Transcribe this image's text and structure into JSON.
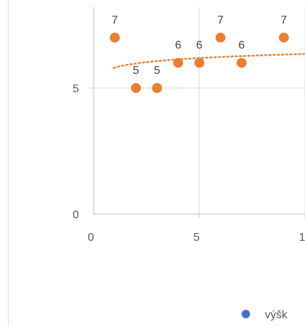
{
  "chart_data": {
    "type": "scatter",
    "title": "",
    "xlabel": "",
    "ylabel": "",
    "xlim": [
      0,
      10
    ],
    "ylim": [
      0,
      10
    ],
    "x_ticks": [
      "0",
      "5",
      "1"
    ],
    "y_ticks": [
      "0",
      "5"
    ],
    "grid": true,
    "series": [
      {
        "color": "#ED7D31",
        "x": [
          1,
          2,
          3,
          4,
          5,
          6,
          7,
          9
        ],
        "y": [
          7,
          5,
          5,
          6,
          6,
          7,
          6,
          7
        ],
        "labels": [
          "7",
          "5",
          "5",
          "6",
          "6",
          "7",
          "6",
          "7"
        ]
      }
    ],
    "trendline": {
      "type": "logarithmic",
      "color": "#ED7D31",
      "style": "dotted"
    },
    "legend": {
      "position": "bottom-right",
      "entries": [
        {
          "text": "výšk",
          "color": "#4472C4"
        }
      ]
    }
  }
}
